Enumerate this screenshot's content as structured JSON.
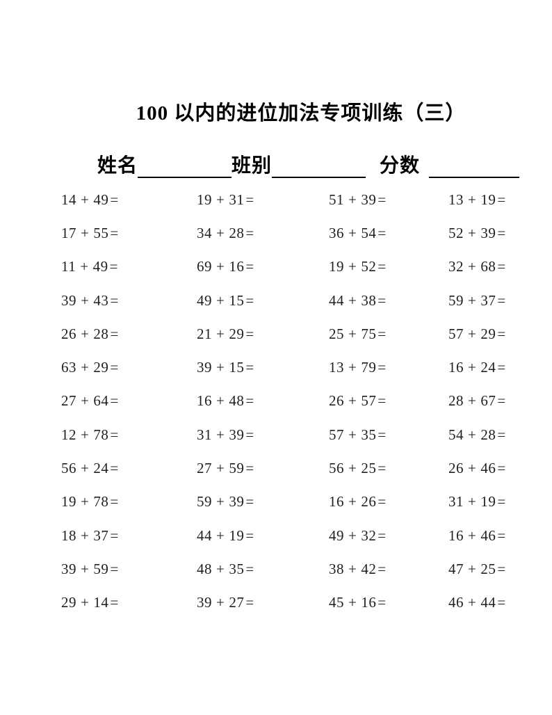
{
  "title": "100 以内的进位加法专项训练（三）",
  "fields": {
    "name_label": "姓名",
    "class_label": "班别",
    "score_label": "分数"
  },
  "problems": [
    [
      "14＋49=",
      "19＋31=",
      "51＋39=",
      "13＋19="
    ],
    [
      "17＋55=",
      "34＋28=",
      "36＋54=",
      "52＋39="
    ],
    [
      "11＋49=",
      "69＋16=",
      "19＋52=",
      "32＋68="
    ],
    [
      "39＋43=",
      "49＋15=",
      "44＋38=",
      "59＋37="
    ],
    [
      "26＋28=",
      "21＋29=",
      "25＋75=",
      "57＋29="
    ],
    [
      "63＋29=",
      "39＋15=",
      "13＋79=",
      "16＋24="
    ],
    [
      "27＋64=",
      "16＋48=",
      "26＋57=",
      "28＋67="
    ],
    [
      "12＋78=",
      "31＋39=",
      "57＋35=",
      "54＋28="
    ],
    [
      "56＋24=",
      "27＋59=",
      "56＋25=",
      "26＋46="
    ],
    [
      "19＋78=",
      "59＋39=",
      "16＋26=",
      "31＋19="
    ],
    [
      "18＋37=",
      "44＋19=",
      "49＋32=",
      "16＋46="
    ],
    [
      "39＋59=",
      "48＋35=",
      "38＋42=",
      "47＋25="
    ],
    [
      "29＋14=",
      "39＋27=",
      "45＋16=",
      "46＋44="
    ]
  ]
}
